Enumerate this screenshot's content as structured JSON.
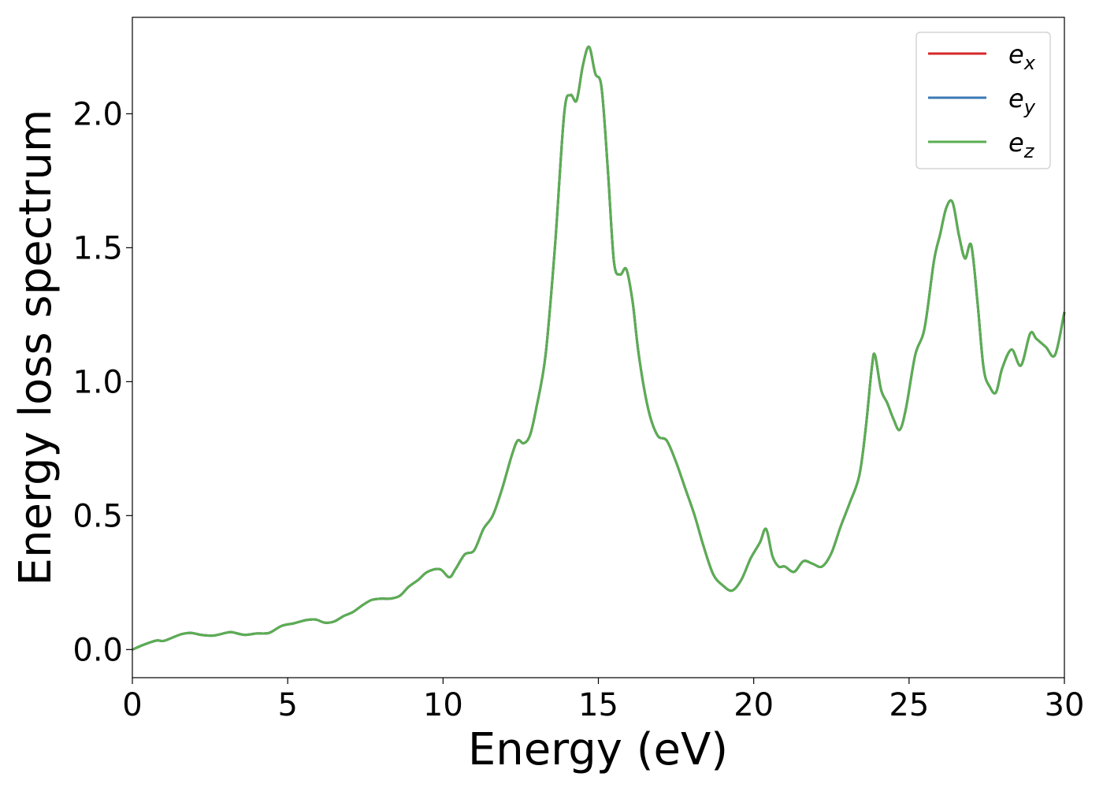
{
  "chart_data": {
    "type": "line",
    "title": "",
    "xlabel": "Energy (eV)",
    "ylabel": "Energy loss spectrum",
    "xlim": [
      0,
      30
    ],
    "ylim": [
      -0.105,
      2.36
    ],
    "xticks": [
      0,
      5,
      10,
      15,
      20,
      25,
      30
    ],
    "xtick_labels": [
      "0",
      "5",
      "10",
      "15",
      "20",
      "25",
      "30"
    ],
    "yticks": [
      0.0,
      0.5,
      1.0,
      1.5,
      2.0
    ],
    "ytick_labels": [
      "0.0",
      "0.5",
      "1.0",
      "1.5",
      "2.0"
    ],
    "grid": false,
    "legend_position": "top-right",
    "x": [
      0,
      0.3,
      0.6,
      0.8,
      1.0,
      1.3,
      1.6,
      1.9,
      2.2,
      2.6,
      3.0,
      3.2,
      3.6,
      4.0,
      4.4,
      4.8,
      5.2,
      5.6,
      5.9,
      6.2,
      6.5,
      6.8,
      7.1,
      7.4,
      7.7,
      8.0,
      8.3,
      8.6,
      8.9,
      9.2,
      9.5,
      9.9,
      10.2,
      10.4,
      10.7,
      11.0,
      11.3,
      11.6,
      11.9,
      12.2,
      12.4,
      12.6,
      12.8,
      13.0,
      13.3,
      13.6,
      13.9,
      14.1,
      14.3,
      14.5,
      14.7,
      14.9,
      15.1,
      15.3,
      15.5,
      15.7,
      15.9,
      16.1,
      16.3,
      16.6,
      16.9,
      17.2,
      17.5,
      17.8,
      18.1,
      18.4,
      18.7,
      19.0,
      19.3,
      19.6,
      19.9,
      20.2,
      20.4,
      20.6,
      20.8,
      21.0,
      21.3,
      21.6,
      21.9,
      22.2,
      22.5,
      22.8,
      23.1,
      23.4,
      23.6,
      23.8,
      23.9,
      24.1,
      24.3,
      24.5,
      24.7,
      24.9,
      25.2,
      25.5,
      25.8,
      26.0,
      26.2,
      26.4,
      26.6,
      26.8,
      27.0,
      27.2,
      27.4,
      27.6,
      27.8,
      28.0,
      28.3,
      28.6,
      28.9,
      29.1,
      29.4,
      29.7,
      30.0
    ],
    "series": [
      {
        "name": "e_x",
        "label_base": "e",
        "label_sub": "x",
        "color": "#d62728",
        "values": [
          0.0,
          0.015,
          0.028,
          0.034,
          0.032,
          0.045,
          0.058,
          0.062,
          0.055,
          0.052,
          0.062,
          0.065,
          0.055,
          0.06,
          0.062,
          0.088,
          0.098,
          0.11,
          0.112,
          0.1,
          0.105,
          0.125,
          0.14,
          0.165,
          0.185,
          0.19,
          0.19,
          0.2,
          0.235,
          0.26,
          0.29,
          0.3,
          0.27,
          0.3,
          0.355,
          0.37,
          0.45,
          0.5,
          0.6,
          0.72,
          0.78,
          0.77,
          0.8,
          0.9,
          1.1,
          1.5,
          2.0,
          2.07,
          2.05,
          2.18,
          2.25,
          2.15,
          2.1,
          1.8,
          1.45,
          1.4,
          1.42,
          1.3,
          1.1,
          0.9,
          0.8,
          0.78,
          0.7,
          0.6,
          0.5,
          0.38,
          0.28,
          0.24,
          0.22,
          0.26,
          0.34,
          0.4,
          0.45,
          0.35,
          0.31,
          0.31,
          0.29,
          0.33,
          0.32,
          0.31,
          0.36,
          0.46,
          0.55,
          0.65,
          0.82,
          1.05,
          1.1,
          0.97,
          0.92,
          0.86,
          0.82,
          0.9,
          1.1,
          1.2,
          1.45,
          1.55,
          1.65,
          1.67,
          1.55,
          1.46,
          1.51,
          1.3,
          1.05,
          0.98,
          0.96,
          1.05,
          1.12,
          1.06,
          1.18,
          1.16,
          1.13,
          1.1,
          1.26
        ]
      },
      {
        "name": "e_y",
        "label_base": "e",
        "label_sub": "y",
        "color": "#3a78b4",
        "values": [
          0.0,
          0.015,
          0.028,
          0.034,
          0.032,
          0.045,
          0.058,
          0.062,
          0.055,
          0.052,
          0.062,
          0.065,
          0.055,
          0.06,
          0.062,
          0.088,
          0.098,
          0.11,
          0.112,
          0.1,
          0.105,
          0.125,
          0.14,
          0.165,
          0.185,
          0.19,
          0.19,
          0.2,
          0.235,
          0.26,
          0.29,
          0.3,
          0.27,
          0.3,
          0.355,
          0.37,
          0.45,
          0.5,
          0.6,
          0.72,
          0.78,
          0.77,
          0.8,
          0.9,
          1.1,
          1.5,
          2.0,
          2.07,
          2.05,
          2.18,
          2.25,
          2.15,
          2.1,
          1.8,
          1.45,
          1.4,
          1.42,
          1.3,
          1.1,
          0.9,
          0.8,
          0.78,
          0.7,
          0.6,
          0.5,
          0.38,
          0.28,
          0.24,
          0.22,
          0.26,
          0.34,
          0.4,
          0.45,
          0.35,
          0.31,
          0.31,
          0.29,
          0.33,
          0.32,
          0.31,
          0.36,
          0.46,
          0.55,
          0.65,
          0.82,
          1.05,
          1.1,
          0.97,
          0.92,
          0.86,
          0.82,
          0.9,
          1.1,
          1.2,
          1.45,
          1.55,
          1.65,
          1.67,
          1.55,
          1.46,
          1.51,
          1.3,
          1.05,
          0.98,
          0.96,
          1.05,
          1.12,
          1.06,
          1.18,
          1.16,
          1.13,
          1.1,
          1.26
        ]
      },
      {
        "name": "e_z",
        "label_base": "e",
        "label_sub": "z",
        "color": "#5aae51",
        "values": [
          0.0,
          0.015,
          0.028,
          0.034,
          0.032,
          0.045,
          0.058,
          0.062,
          0.055,
          0.052,
          0.062,
          0.065,
          0.055,
          0.06,
          0.062,
          0.088,
          0.098,
          0.11,
          0.112,
          0.1,
          0.105,
          0.125,
          0.14,
          0.165,
          0.185,
          0.19,
          0.19,
          0.2,
          0.235,
          0.26,
          0.29,
          0.3,
          0.27,
          0.3,
          0.355,
          0.37,
          0.45,
          0.5,
          0.6,
          0.72,
          0.78,
          0.77,
          0.8,
          0.9,
          1.1,
          1.5,
          2.0,
          2.07,
          2.05,
          2.18,
          2.25,
          2.15,
          2.1,
          1.8,
          1.45,
          1.4,
          1.42,
          1.3,
          1.1,
          0.9,
          0.8,
          0.78,
          0.7,
          0.6,
          0.5,
          0.38,
          0.28,
          0.24,
          0.22,
          0.26,
          0.34,
          0.4,
          0.45,
          0.35,
          0.31,
          0.31,
          0.29,
          0.33,
          0.32,
          0.31,
          0.36,
          0.46,
          0.55,
          0.65,
          0.82,
          1.05,
          1.1,
          0.97,
          0.92,
          0.86,
          0.82,
          0.9,
          1.1,
          1.2,
          1.45,
          1.55,
          1.65,
          1.67,
          1.55,
          1.46,
          1.51,
          1.3,
          1.05,
          0.98,
          0.96,
          1.05,
          1.12,
          1.06,
          1.18,
          1.16,
          1.13,
          1.1,
          1.26
        ]
      }
    ]
  }
}
